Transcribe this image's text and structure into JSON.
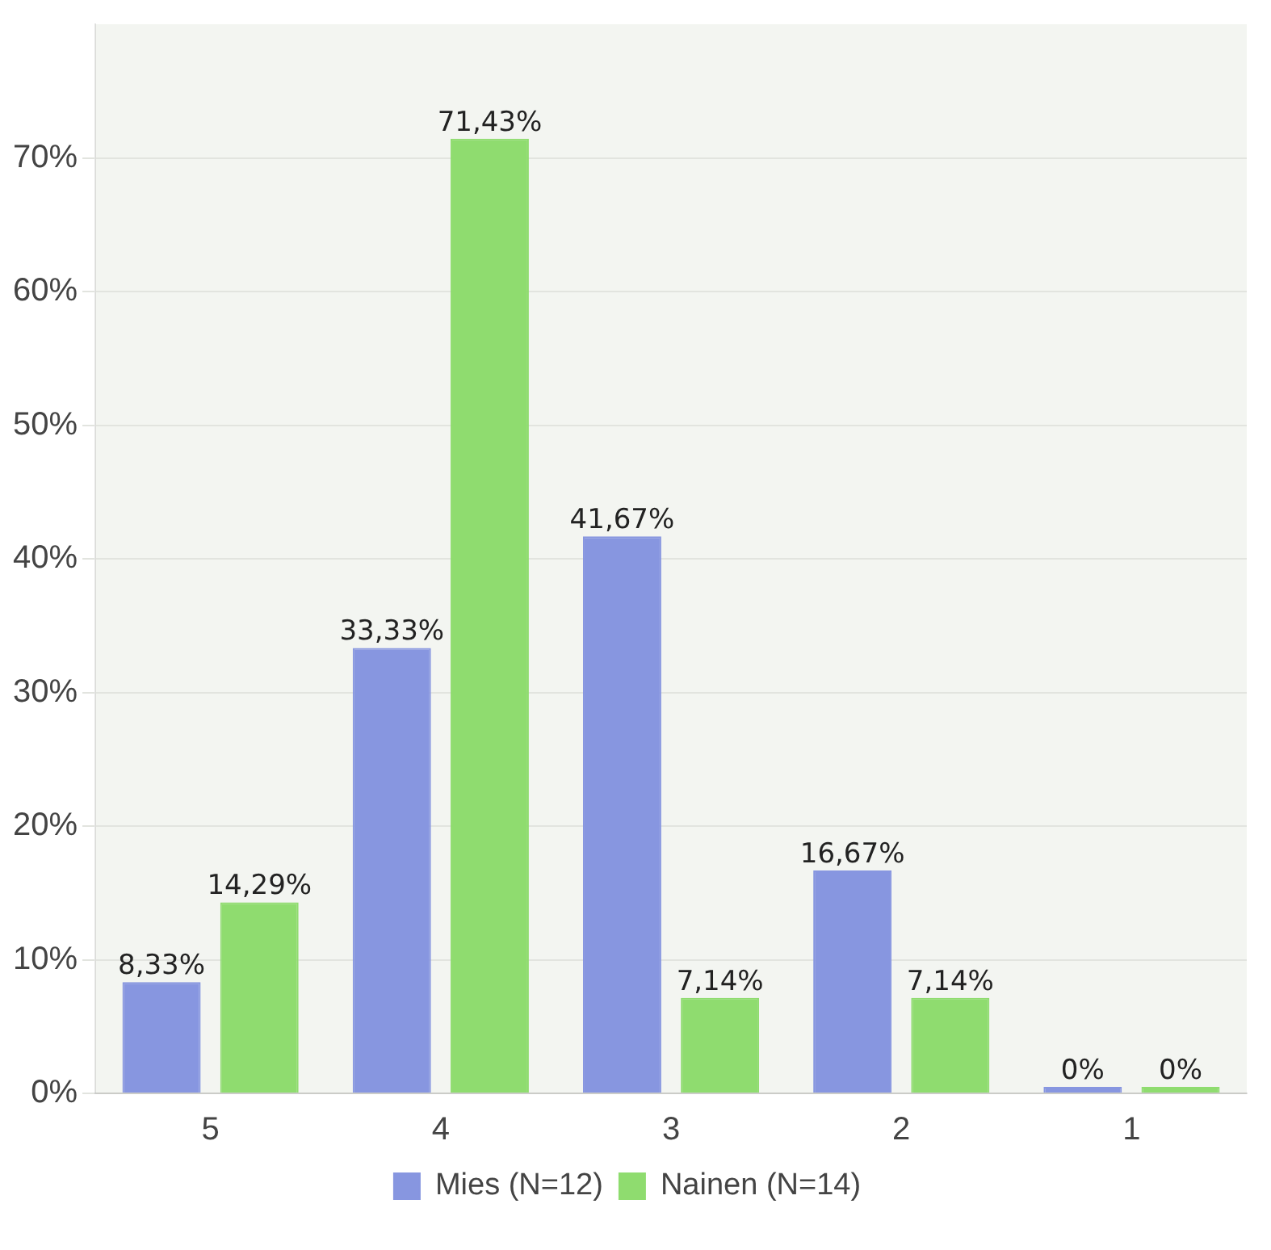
{
  "chart_data": {
    "type": "bar",
    "categories": [
      "5",
      "4",
      "3",
      "2",
      "1"
    ],
    "series": [
      {
        "name": "Mies (N=12)",
        "color": "#8796e0",
        "values": [
          8.33,
          33.33,
          41.67,
          16.67,
          0
        ],
        "value_labels": [
          "8,33%",
          "33,33%",
          "41,67%",
          "16,67%",
          "0%"
        ]
      },
      {
        "name": "Nainen (N=14)",
        "color": "#8fdc6f",
        "values": [
          14.29,
          71.43,
          7.14,
          7.14,
          0
        ],
        "value_labels": [
          "14,29%",
          "71,43%",
          "7,14%",
          "7,14%",
          "0%"
        ]
      }
    ],
    "ylim": [
      0,
      80
    ],
    "yticks": [
      {
        "value": 0,
        "label": "0%"
      },
      {
        "value": 10,
        "label": "10%"
      },
      {
        "value": 20,
        "label": "20%"
      },
      {
        "value": 30,
        "label": "30%"
      },
      {
        "value": 40,
        "label": "40%"
      },
      {
        "value": 50,
        "label": "50%"
      },
      {
        "value": 60,
        "label": "60%"
      },
      {
        "value": 70,
        "label": "70%"
      }
    ],
    "grid": "y",
    "legend": "bottom"
  }
}
